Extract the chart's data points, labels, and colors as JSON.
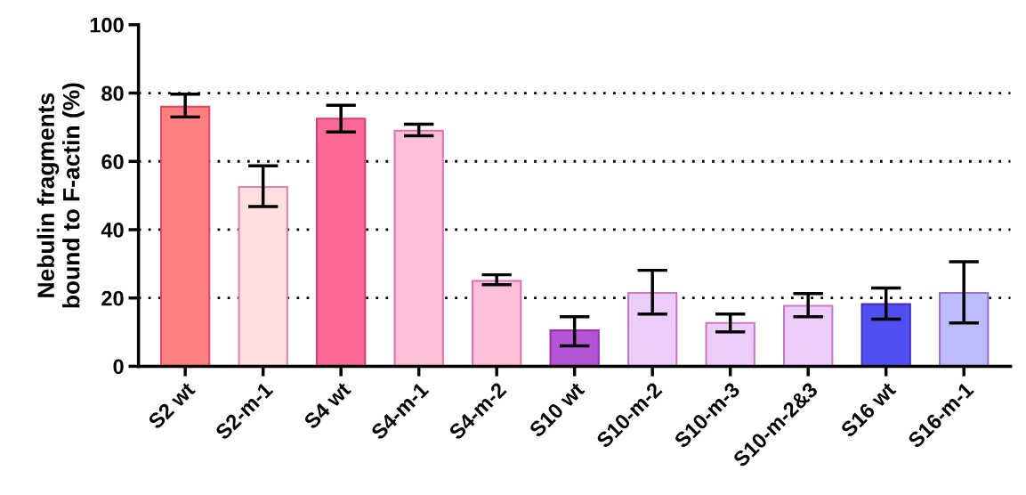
{
  "chart_data": {
    "type": "bar",
    "ylabel": "Nebulin fragments\nbound to F-actin (%)",
    "categories": [
      "S2 wt",
      "S2-m-1",
      "S4 wt",
      "S4-m-1",
      "S4-m-2",
      "S10 wt",
      "S10-m-2",
      "S10-m-3",
      "S10-m-2&3",
      "S16 wt",
      "S16-m-1"
    ],
    "values": [
      76,
      52.5,
      72.5,
      69,
      25,
      10.5,
      21.5,
      12.7,
      17.7,
      18.2,
      21.5
    ],
    "errors": [
      [
        73,
        79.7
      ],
      [
        46.8,
        58.7
      ],
      [
        68.6,
        76.4
      ],
      [
        67.5,
        70.9
      ],
      [
        23.9,
        26.8
      ],
      [
        6,
        14.5
      ],
      [
        15.3,
        28.1
      ],
      [
        10.1,
        15.3
      ],
      [
        14.5,
        21.3
      ],
      [
        13.8,
        22.9
      ],
      [
        12.7,
        30.6
      ]
    ],
    "colors": [
      "#ff7f7f",
      "#ffdede",
      "#fc6895",
      "#ffbfda",
      "#ffbfd8",
      "#b455d8",
      "#ecccf8",
      "#ecccf8",
      "#ecccf8",
      "#5050f0",
      "#bcbcfc"
    ],
    "ylim": [
      0,
      100
    ],
    "yticks": [
      0,
      20,
      40,
      60,
      80,
      100
    ],
    "grid": "y"
  }
}
